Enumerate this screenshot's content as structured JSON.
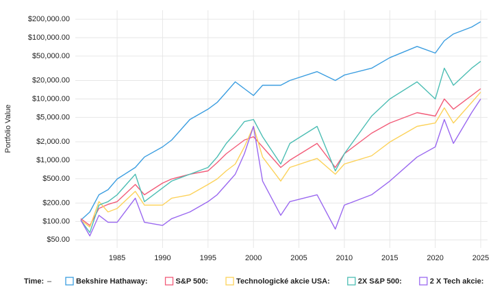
{
  "chart_data": {
    "type": "line",
    "y_label": "Portfolio Value",
    "log_y": true,
    "grid": true,
    "legend_prefix": "Time:",
    "legend_time": "–",
    "x": [
      1981,
      1982,
      1983,
      1984,
      1985,
      1987,
      1988,
      1990,
      1991,
      1993,
      1995,
      1996,
      1997,
      1998,
      1999,
      2000,
      2001,
      2003,
      2004,
      2007,
      2009,
      2010,
      2013,
      2015,
      2018,
      2020,
      2021,
      2022,
      2024,
      2025
    ],
    "xlim": [
      1980.4,
      2025.75
    ],
    "xticks": [
      1985,
      1990,
      1995,
      2000,
      2005,
      2010,
      2015,
      2020,
      2025
    ],
    "ylim": [
      37,
      280000
    ],
    "yticks": [
      {
        "value": 50,
        "label": "$50.00"
      },
      {
        "value": 100,
        "label": "$100.00"
      },
      {
        "value": 200,
        "label": "$200.00"
      },
      {
        "value": 500,
        "label": "$500.00"
      },
      {
        "value": 1000,
        "label": "$1,000.00"
      },
      {
        "value": 2000,
        "label": "$2,000.00"
      },
      {
        "value": 5000,
        "label": "$5,000.00"
      },
      {
        "value": 10000,
        "label": "$10,000.00"
      },
      {
        "value": 20000,
        "label": "$20,000.00"
      },
      {
        "value": 50000,
        "label": "$50,000.00"
      },
      {
        "value": 100000,
        "label": "$100,000.00"
      },
      {
        "value": 200000,
        "label": "$200,000.00"
      }
    ],
    "series": [
      {
        "name": "Bekshire Hathaway:",
        "color": "#3a9de0",
        "values": [
          105,
          143,
          273,
          330,
          493,
          762,
          1125,
          1650,
          2130,
          4620,
          6800,
          8760,
          12900,
          19000,
          14700,
          11400,
          16700,
          16700,
          20000,
          27900,
          20000,
          24500,
          31700,
          47200,
          72000,
          56000,
          89000,
          115000,
          149000,
          182000
        ]
      },
      {
        "name": "S&P 500:",
        "color": "#f25b78",
        "values": [
          111,
          86,
          163,
          190,
          211,
          401,
          273,
          422,
          493,
          590,
          670,
          912,
          1275,
          1650,
          2130,
          2420,
          1650,
          762,
          1000,
          1880,
          762,
          1275,
          2760,
          4050,
          5970,
          5250,
          10000,
          6800,
          11400,
          14700
        ]
      },
      {
        "name": "Technologické akcie USA:",
        "color": "#fcd25a",
        "values": [
          105,
          81,
          211,
          143,
          163,
          310,
          185,
          185,
          240,
          273,
          401,
          493,
          670,
          866,
          1650,
          3570,
          1125,
          456,
          762,
          1070,
          590,
          866,
          1180,
          1980,
          3570,
          4050,
          7140,
          4050,
          8760,
          12900
        ]
      },
      {
        "name": "2X S&P 500:",
        "color": "#4bbdb3",
        "values": [
          105,
          66,
          185,
          211,
          273,
          590,
          211,
          353,
          456,
          590,
          762,
          1125,
          1875,
          2760,
          4260,
          4620,
          2420,
          866,
          1875,
          3570,
          670,
          1275,
          5250,
          10000,
          19000,
          10000,
          31700,
          16700,
          31700,
          41000
        ]
      },
      {
        "name": "2 X Tech akcie:",
        "color": "#9a68f0",
        "values": [
          105,
          58,
          126,
          97,
          97,
          240,
          97,
          86,
          111,
          143,
          211,
          273,
          401,
          590,
          1275,
          3570,
          456,
          126,
          211,
          273,
          75,
          185,
          273,
          456,
          1125,
          1650,
          4620,
          1880,
          5970,
          10000
        ]
      }
    ]
  }
}
